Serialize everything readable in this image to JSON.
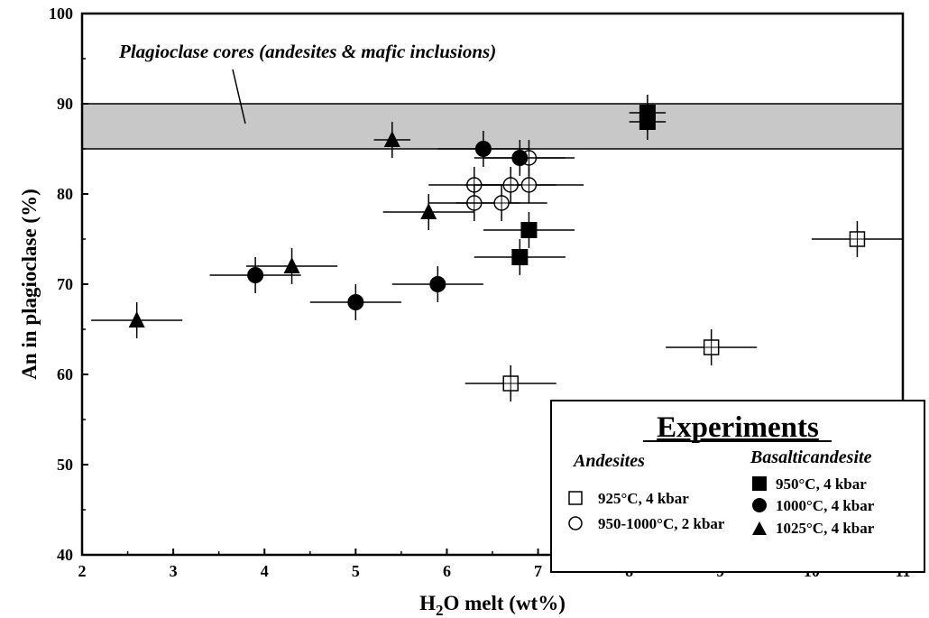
{
  "chart_data": {
    "type": "scatter",
    "xlabel_main": "H",
    "xlabel_sub": "2",
    "xlabel_rest": "O melt (wt%)",
    "ylabel": "An in plagioclase (%)",
    "xlim": [
      2,
      11
    ],
    "ylim": [
      40,
      100
    ],
    "x_ticks": [
      "2",
      "3",
      "4",
      "5",
      "6",
      "7",
      "8",
      "9",
      "10",
      "11"
    ],
    "y_ticks": [
      "40",
      "50",
      "60",
      "70",
      "80",
      "90",
      "100"
    ],
    "grid": false,
    "band": {
      "label": "Plagioclase cores (andesites & mafic inclusions)",
      "y_range": [
        85,
        90
      ],
      "color": "#c8c8c8"
    },
    "legend": {
      "title": "Experiments",
      "placement": "bottom-right",
      "groups": [
        {
          "title": "Andesites",
          "entries": [
            {
              "marker": "open-square",
              "label": "925°C, 4 kbar"
            },
            {
              "marker": "open-circle",
              "label": "950-1000°C, 2 kbar"
            }
          ]
        },
        {
          "title": "Basalticandesite",
          "entries": [
            {
              "marker": "filled-square",
              "label": "950°C, 4 kbar"
            },
            {
              "marker": "filled-circle",
              "label": "1000°C, 4 kbar"
            },
            {
              "marker": "filled-triangle",
              "label": "1025°C, 4 kbar"
            }
          ]
        }
      ]
    },
    "series": [
      {
        "name": "925°C, 4 kbar",
        "group": "Andesites",
        "marker": "open-square",
        "points": [
          {
            "x": 6.7,
            "y": 59,
            "xerr": 0.5,
            "yerr": 2
          },
          {
            "x": 8.9,
            "y": 63,
            "xerr": 0.5,
            "yerr": 2
          },
          {
            "x": 10.5,
            "y": 75,
            "xerr": 0.5,
            "yerr": 2
          }
        ]
      },
      {
        "name": "950-1000°C, 2 kbar",
        "group": "Andesites",
        "marker": "open-circle",
        "points": [
          {
            "x": 6.9,
            "y": 84,
            "xerr": 0.5,
            "yerr": 2
          },
          {
            "x": 6.3,
            "y": 81,
            "xerr": 0.5,
            "yerr": 2
          },
          {
            "x": 6.7,
            "y": 81,
            "xerr": 0.5,
            "yerr": 2
          },
          {
            "x": 6.9,
            "y": 81,
            "xerr": 0.6,
            "yerr": 2
          },
          {
            "x": 6.3,
            "y": 79,
            "xerr": 0.5,
            "yerr": 2
          },
          {
            "x": 6.6,
            "y": 79,
            "xerr": 0.5,
            "yerr": 2
          }
        ]
      },
      {
        "name": "950°C, 4 kbar",
        "group": "Basalticandesite",
        "marker": "filled-square",
        "points": [
          {
            "x": 8.2,
            "y": 89,
            "xerr": 0.2,
            "yerr": 2
          },
          {
            "x": 8.2,
            "y": 88,
            "xerr": 0.2,
            "yerr": 2
          },
          {
            "x": 6.9,
            "y": 76,
            "xerr": 0.5,
            "yerr": 2
          },
          {
            "x": 6.8,
            "y": 73,
            "xerr": 0.5,
            "yerr": 2
          }
        ]
      },
      {
        "name": "1000°C, 4 kbar",
        "group": "Basalticandesite",
        "marker": "filled-circle",
        "points": [
          {
            "x": 6.4,
            "y": 85,
            "xerr": 0.5,
            "yerr": 2
          },
          {
            "x": 6.8,
            "y": 84,
            "xerr": 0.5,
            "yerr": 2
          },
          {
            "x": 3.9,
            "y": 71,
            "xerr": 0.5,
            "yerr": 2
          },
          {
            "x": 5.0,
            "y": 68,
            "xerr": 0.5,
            "yerr": 2
          },
          {
            "x": 5.9,
            "y": 70,
            "xerr": 0.5,
            "yerr": 2
          }
        ]
      },
      {
        "name": "1025°C, 4 kbar",
        "group": "Basalticandesite",
        "marker": "filled-triangle",
        "points": [
          {
            "x": 5.4,
            "y": 86,
            "xerr": 0.2,
            "yerr": 2
          },
          {
            "x": 5.8,
            "y": 78,
            "xerr": 0.5,
            "yerr": 2
          },
          {
            "x": 4.3,
            "y": 72,
            "xerr": 0.5,
            "yerr": 2
          },
          {
            "x": 2.6,
            "y": 66,
            "xerr": 0.5,
            "yerr": 2
          }
        ]
      }
    ]
  }
}
